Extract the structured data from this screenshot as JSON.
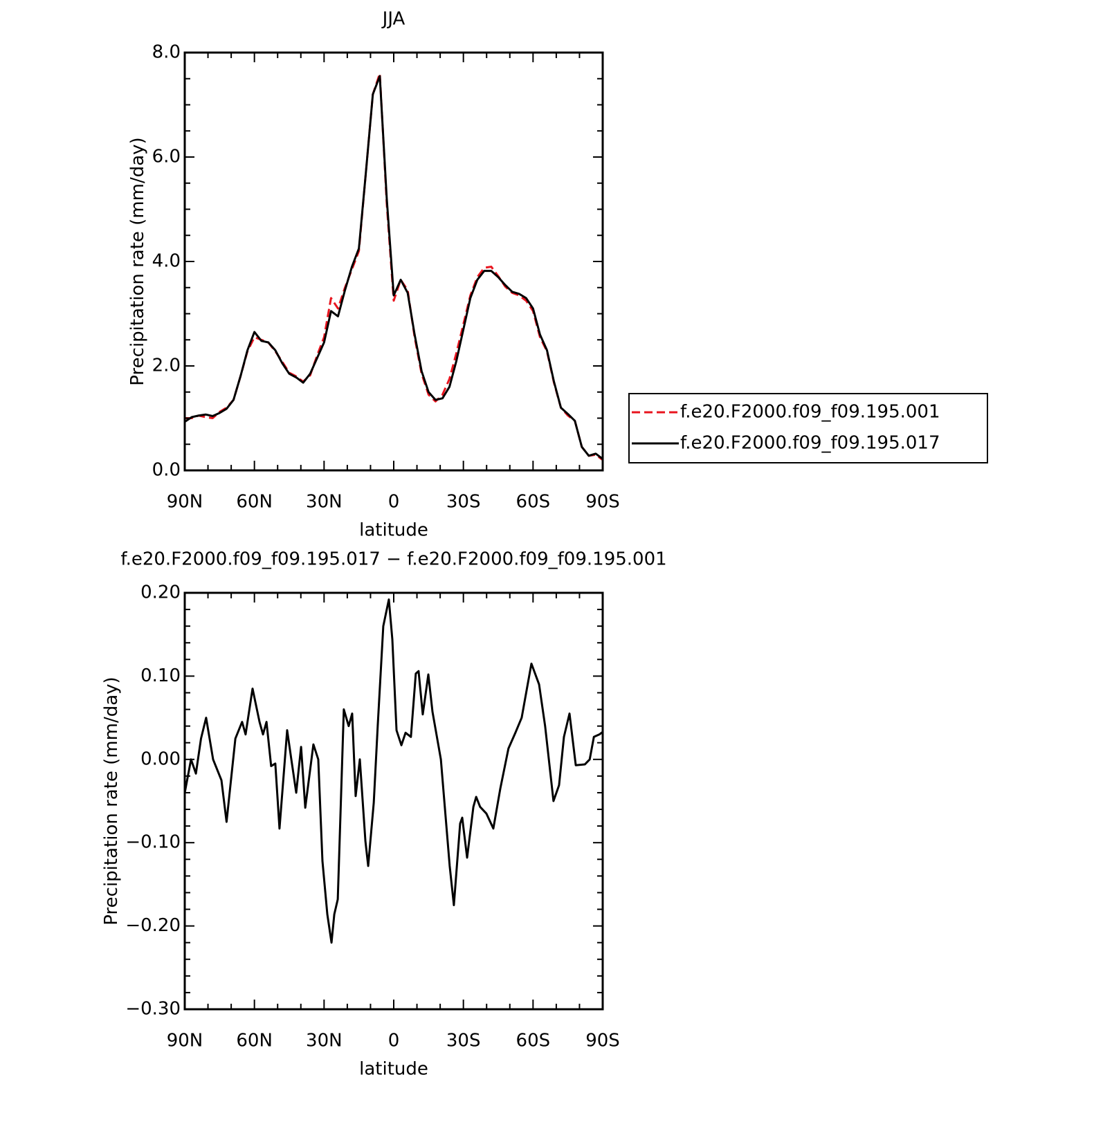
{
  "chart_data": [
    {
      "type": "line",
      "title": "JJA",
      "xlabel": "latitude",
      "ylabel": "Precipitation rate (mm/day)",
      "x": [
        90,
        87,
        84,
        81,
        78,
        75,
        72,
        69,
        66,
        63,
        60,
        57,
        54,
        51,
        48,
        45,
        42,
        39,
        36,
        33,
        30,
        27,
        24,
        21,
        18,
        15,
        12,
        9,
        6,
        3,
        0,
        -3,
        -6,
        -9,
        -12,
        -15,
        -18,
        -21,
        -24,
        -27,
        -30,
        -33,
        -36,
        -39,
        -42,
        -45,
        -48,
        -51,
        -54,
        -57,
        -60,
        -63,
        -66,
        -69,
        -72,
        -75,
        -78,
        -81,
        -84,
        -87,
        -90
      ],
      "series": [
        {
          "name": "f.e20.F2000.f09_f09.195.001",
          "color": "#e8141e",
          "linestyle": "dashed",
          "values": [
            1.0,
            1.0,
            1.05,
            1.02,
            1.0,
            1.12,
            1.2,
            1.35,
            1.8,
            2.28,
            2.55,
            2.5,
            2.45,
            2.28,
            2.08,
            1.87,
            1.8,
            1.7,
            1.82,
            2.2,
            2.55,
            3.3,
            3.1,
            3.5,
            3.85,
            4.2,
            5.7,
            7.2,
            7.6,
            5.1,
            3.25,
            3.65,
            3.45,
            2.55,
            1.85,
            1.45,
            1.32,
            1.45,
            1.75,
            2.25,
            2.8,
            3.35,
            3.7,
            3.88,
            3.9,
            3.72,
            3.52,
            3.4,
            3.35,
            3.25,
            3.05,
            2.55,
            2.28,
            1.68,
            1.2,
            1.05,
            0.95,
            0.45,
            0.28,
            0.3,
            0.2
          ]
        },
        {
          "name": "f.e20.F2000.f09_f09.195.017",
          "color": "#000000",
          "linestyle": "solid",
          "values": [
            0.93,
            1.02,
            1.05,
            1.07,
            1.04,
            1.1,
            1.18,
            1.35,
            1.8,
            2.3,
            2.65,
            2.48,
            2.45,
            2.3,
            2.05,
            1.85,
            1.78,
            1.68,
            1.85,
            2.15,
            2.45,
            3.05,
            2.95,
            3.45,
            3.9,
            4.25,
            5.7,
            7.2,
            7.55,
            5.2,
            3.35,
            3.65,
            3.4,
            2.6,
            1.9,
            1.5,
            1.35,
            1.38,
            1.6,
            2.1,
            2.7,
            3.3,
            3.65,
            3.82,
            3.82,
            3.7,
            3.55,
            3.42,
            3.38,
            3.3,
            3.1,
            2.6,
            2.3,
            1.7,
            1.2,
            1.08,
            0.95,
            0.45,
            0.28,
            0.32,
            0.22
          ]
        }
      ],
      "xlim": [
        90,
        -90
      ],
      "xticks": [
        {
          "value": 90,
          "label": "90N"
        },
        {
          "value": 60,
          "label": "60N"
        },
        {
          "value": 30,
          "label": "30N"
        },
        0,
        {
          "value": -30,
          "label": "30S"
        },
        {
          "value": -60,
          "label": "60S"
        },
        {
          "value": -90,
          "label": "90S"
        }
      ],
      "xminorticks": [
        80,
        70,
        50,
        40,
        20,
        10,
        -10,
        -20,
        -40,
        -50,
        -70,
        -80
      ],
      "ylim": [
        0,
        8
      ],
      "yticks": [
        {
          "value": 0,
          "label": "0.0"
        },
        {
          "value": 2,
          "label": "2.0"
        },
        {
          "value": 4,
          "label": "4.0"
        },
        {
          "value": 6,
          "label": "6.0"
        },
        {
          "value": 8,
          "label": "8.0"
        }
      ],
      "yminorticks": [
        0.5,
        1,
        1.5,
        2.5,
        3,
        3.5,
        4.5,
        5,
        5.5,
        6.5,
        7,
        7.5
      ],
      "legend": "right"
    },
    {
      "type": "line",
      "title": "f.e20.F2000.f09_f09.195.017 − f.e20.F2000.f09_f09.195.001",
      "xlabel": "latitude",
      "ylabel": "Precipitation rate (mm/day)",
      "x": [
        90,
        87.3,
        85.2,
        83,
        80.8,
        77.8,
        74.2,
        72,
        68.2,
        65.3,
        63.8,
        60.8,
        57.8,
        56.3,
        54.8,
        52.8,
        51,
        49.2,
        45.9,
        44.1,
        42,
        39.9,
        38.1,
        34.6,
        32.5,
        30.7,
        28.6,
        26.8,
        25.6,
        24.1,
        21.5,
        19.4,
        17.9,
        16.4,
        14.6,
        12.2,
        11,
        8.6,
        6.9,
        4.5,
        2.1,
        0.6,
        -1.2,
        -3.3,
        -5.1,
        -7.4,
        -9.5,
        -10.7,
        -12.5,
        -14.9,
        -16.7,
        -20.3,
        -24.1,
        -25.9,
        -28.6,
        -29.5,
        -31.6,
        -34.3,
        -35.5,
        -37.2,
        -39.9,
        -42.9,
        -45.9,
        -49.4,
        -52.4,
        -55.1,
        -59.3,
        -62.6,
        -65.2,
        -68.8,
        -71.2,
        -73.3,
        -75.7,
        -78.4,
        -82.3,
        -84.4,
        -86.2,
        -88.6,
        -90
      ],
      "values": [
        -0.04,
        0.0,
        -0.017,
        0.025,
        0.05,
        0.0,
        -0.025,
        -0.075,
        0.025,
        0.045,
        0.03,
        0.085,
        0.045,
        0.03,
        0.045,
        -0.008,
        -0.005,
        -0.083,
        0.035,
        0.0,
        -0.04,
        0.015,
        -0.058,
        0.018,
        0.0,
        -0.122,
        -0.186,
        -0.22,
        -0.186,
        -0.168,
        0.06,
        0.04,
        0.055,
        -0.044,
        0.0,
        -0.098,
        -0.128,
        -0.052,
        0.04,
        0.16,
        0.192,
        0.144,
        0.035,
        0.017,
        0.032,
        0.027,
        0.103,
        0.106,
        0.054,
        0.102,
        0.057,
        0.0,
        -0.128,
        -0.175,
        -0.077,
        -0.07,
        -0.118,
        -0.057,
        -0.045,
        -0.057,
        -0.065,
        -0.083,
        -0.035,
        0.013,
        0.032,
        0.05,
        0.115,
        0.09,
        0.04,
        -0.05,
        -0.031,
        0.027,
        0.055,
        -0.007,
        -0.006,
        0.0,
        0.027,
        0.03,
        0.033
      ],
      "color": "#000000",
      "xlim": [
        90,
        -90
      ],
      "xticks": [
        {
          "value": 90,
          "label": "90N"
        },
        {
          "value": 60,
          "label": "60N"
        },
        {
          "value": 30,
          "label": "30N"
        },
        0,
        {
          "value": -30,
          "label": "30S"
        },
        {
          "value": -60,
          "label": "60S"
        },
        {
          "value": -90,
          "label": "90S"
        }
      ],
      "xminorticks": [
        80,
        70,
        50,
        40,
        20,
        10,
        -10,
        -20,
        -40,
        -50,
        -70,
        -80
      ],
      "ylim": [
        -0.3,
        0.2
      ],
      "yticks": [
        {
          "value": -0.3,
          "label": "−0.30"
        },
        {
          "value": -0.2,
          "label": "−0.20"
        },
        {
          "value": -0.1,
          "label": "−0.10"
        },
        {
          "value": 0,
          "label": "0.00"
        },
        {
          "value": 0.1,
          "label": "0.10"
        },
        {
          "value": 0.2,
          "label": "0.20"
        }
      ],
      "yminorticks": [
        -0.28,
        -0.26,
        -0.24,
        -0.22,
        -0.18,
        -0.16,
        -0.14,
        -0.12,
        -0.08,
        -0.06,
        -0.04,
        -0.02,
        0.02,
        0.04,
        0.06,
        0.08,
        0.12,
        0.14,
        0.16,
        0.18
      ]
    }
  ]
}
